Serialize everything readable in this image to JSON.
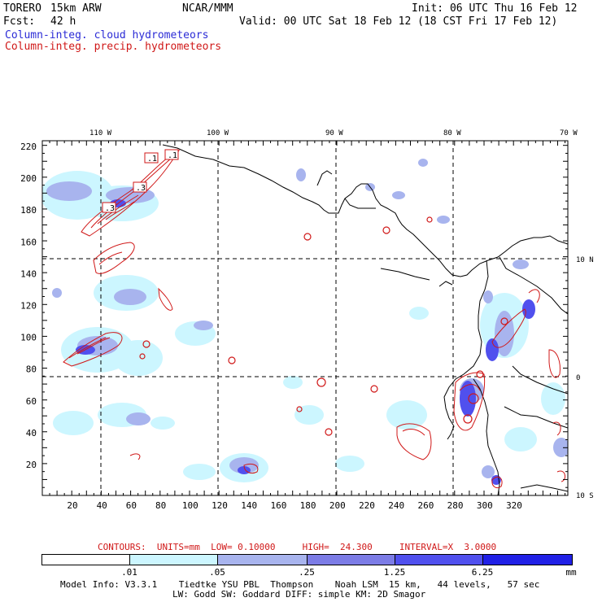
{
  "header": {
    "model": "TORERO",
    "resolution": "15km ARW",
    "org": "NCAR/MMM",
    "init": "Init: 06 UTC Thu 16 Feb 12",
    "fcst_label": "Fcst:",
    "fcst_value": "42 h",
    "valid": "Valid: 00 UTC Sat 18 Feb 12 (18 CST Fri 17 Feb 12)",
    "field1": "Column-integ. cloud hydrometeors",
    "field2": "Column-integ. precip. hydrometeors"
  },
  "map": {
    "top_lon_labels": [
      "110 W",
      "100 W",
      "90 W",
      "80 W",
      "70 W"
    ],
    "right_lat_labels": [
      "10 N",
      "0",
      "10 S"
    ],
    "x_ticks": [
      "20",
      "40",
      "60",
      "80",
      "100",
      "120",
      "140",
      "160",
      "180",
      "200",
      "220",
      "240",
      "260",
      "280",
      "300",
      "320"
    ],
    "y_ticks": [
      "20",
      "40",
      "60",
      "80",
      "100",
      "120",
      "140",
      "160",
      "180",
      "200",
      "220"
    ],
    "contour_labels": [
      ".1",
      ".1",
      ".3",
      ".3"
    ]
  },
  "contours_info": "CONTOURS:  UNITS=mm  LOW= 0.10000     HIGH=  24.300     INTERVAL=X  3.0000",
  "legend": {
    "labels": [
      ".01",
      ".05",
      ".25",
      "1.25",
      "6.25"
    ],
    "unit": "mm",
    "colors": [
      "#ffffff",
      "#ccf6ff",
      "#a8b4ee",
      "#7c7ce6",
      "#5050ee",
      "#2020e6"
    ]
  },
  "footer": {
    "line1": "Model Info: V3.3.1    Tiedtke YSU PBL  Thompson    Noah LSM  15 km,   44 levels,   57 sec",
    "line2": "LW: Godd SW: Goddard DIFF: simple KM: 2D Smagor"
  },
  "colors": {
    "cloud": "#2b2bd6",
    "precip": "#d01818"
  }
}
